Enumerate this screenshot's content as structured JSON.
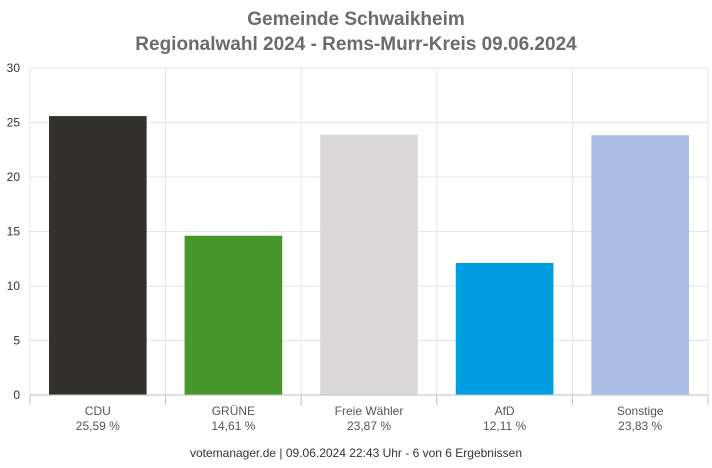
{
  "chart_data": {
    "type": "bar",
    "title": "Gemeinde Schwaikheim",
    "subtitle": "Regionalwahl 2024 - Rems-Murr-Kreis 09.06.2024",
    "xlabel": "",
    "ylabel": "",
    "ylim": [
      0,
      30
    ],
    "yticks": [
      "0",
      "5",
      "10",
      "15",
      "20",
      "25",
      "30"
    ],
    "grid": true,
    "categories": [
      "CDU",
      "GRÜNE",
      "Freie Wähler",
      "AfD",
      "Sonstige"
    ],
    "values": [
      25.59,
      14.61,
      23.87,
      12.11,
      23.83
    ],
    "value_labels": [
      "25,59 %",
      "14,61 %",
      "23,87 %",
      "12,11 %",
      "23,83 %"
    ],
    "colors": [
      "#32312e",
      "#46962b",
      "#dad8d9",
      "#009ee0",
      "#aabde4"
    ]
  },
  "footer": "votemanager.de | 09.06.2024 22:43 Uhr - 6 von 6 Ergebnissen"
}
